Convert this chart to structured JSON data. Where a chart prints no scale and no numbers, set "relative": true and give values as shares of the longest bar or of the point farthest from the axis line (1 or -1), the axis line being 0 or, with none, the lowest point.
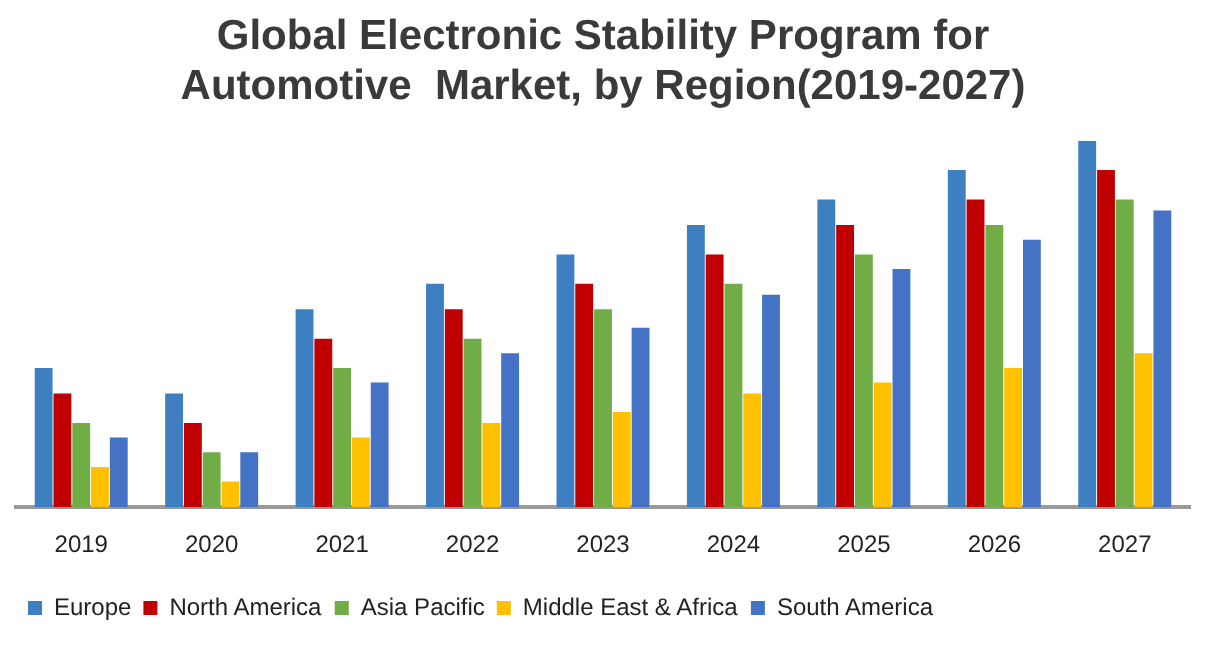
{
  "chart_data": {
    "type": "bar",
    "title": "Global Electronic Stability Program for Automotive  Market, by Region(2019-2027)",
    "relative": true,
    "grid": false,
    "legend": "bottom left",
    "categories": [
      "2019",
      "2020",
      "2021",
      "2022",
      "2023",
      "2024",
      "2025",
      "2026",
      "2027"
    ],
    "series": [
      {
        "name": "Europe",
        "color": "#3d7fc1",
        "values": [
          0.38,
          0.31,
          0.54,
          0.61,
          0.69,
          0.77,
          0.84,
          0.92,
          1
        ]
      },
      {
        "name": "North America",
        "color": "#c00000",
        "values": [
          0.31,
          0.23,
          0.46,
          0.54,
          0.61,
          0.69,
          0.77,
          0.84,
          0.92
        ]
      },
      {
        "name": "Asia Pacific",
        "color": "#70ad47",
        "values": [
          0.23,
          0.15,
          0.38,
          0.46,
          0.54,
          0.61,
          0.69,
          0.77,
          0.84
        ]
      },
      {
        "name": "Middle East & Africa",
        "color": "#ffc000",
        "values": [
          0.11,
          0.07,
          0.19,
          0.23,
          0.26,
          0.31,
          0.34,
          0.38,
          0.42
        ]
      },
      {
        "name": "South America",
        "color": "#4472c4",
        "values": [
          0.19,
          0.15,
          0.34,
          0.42,
          0.49,
          0.58,
          0.65,
          0.73,
          0.81
        ]
      }
    ]
  }
}
